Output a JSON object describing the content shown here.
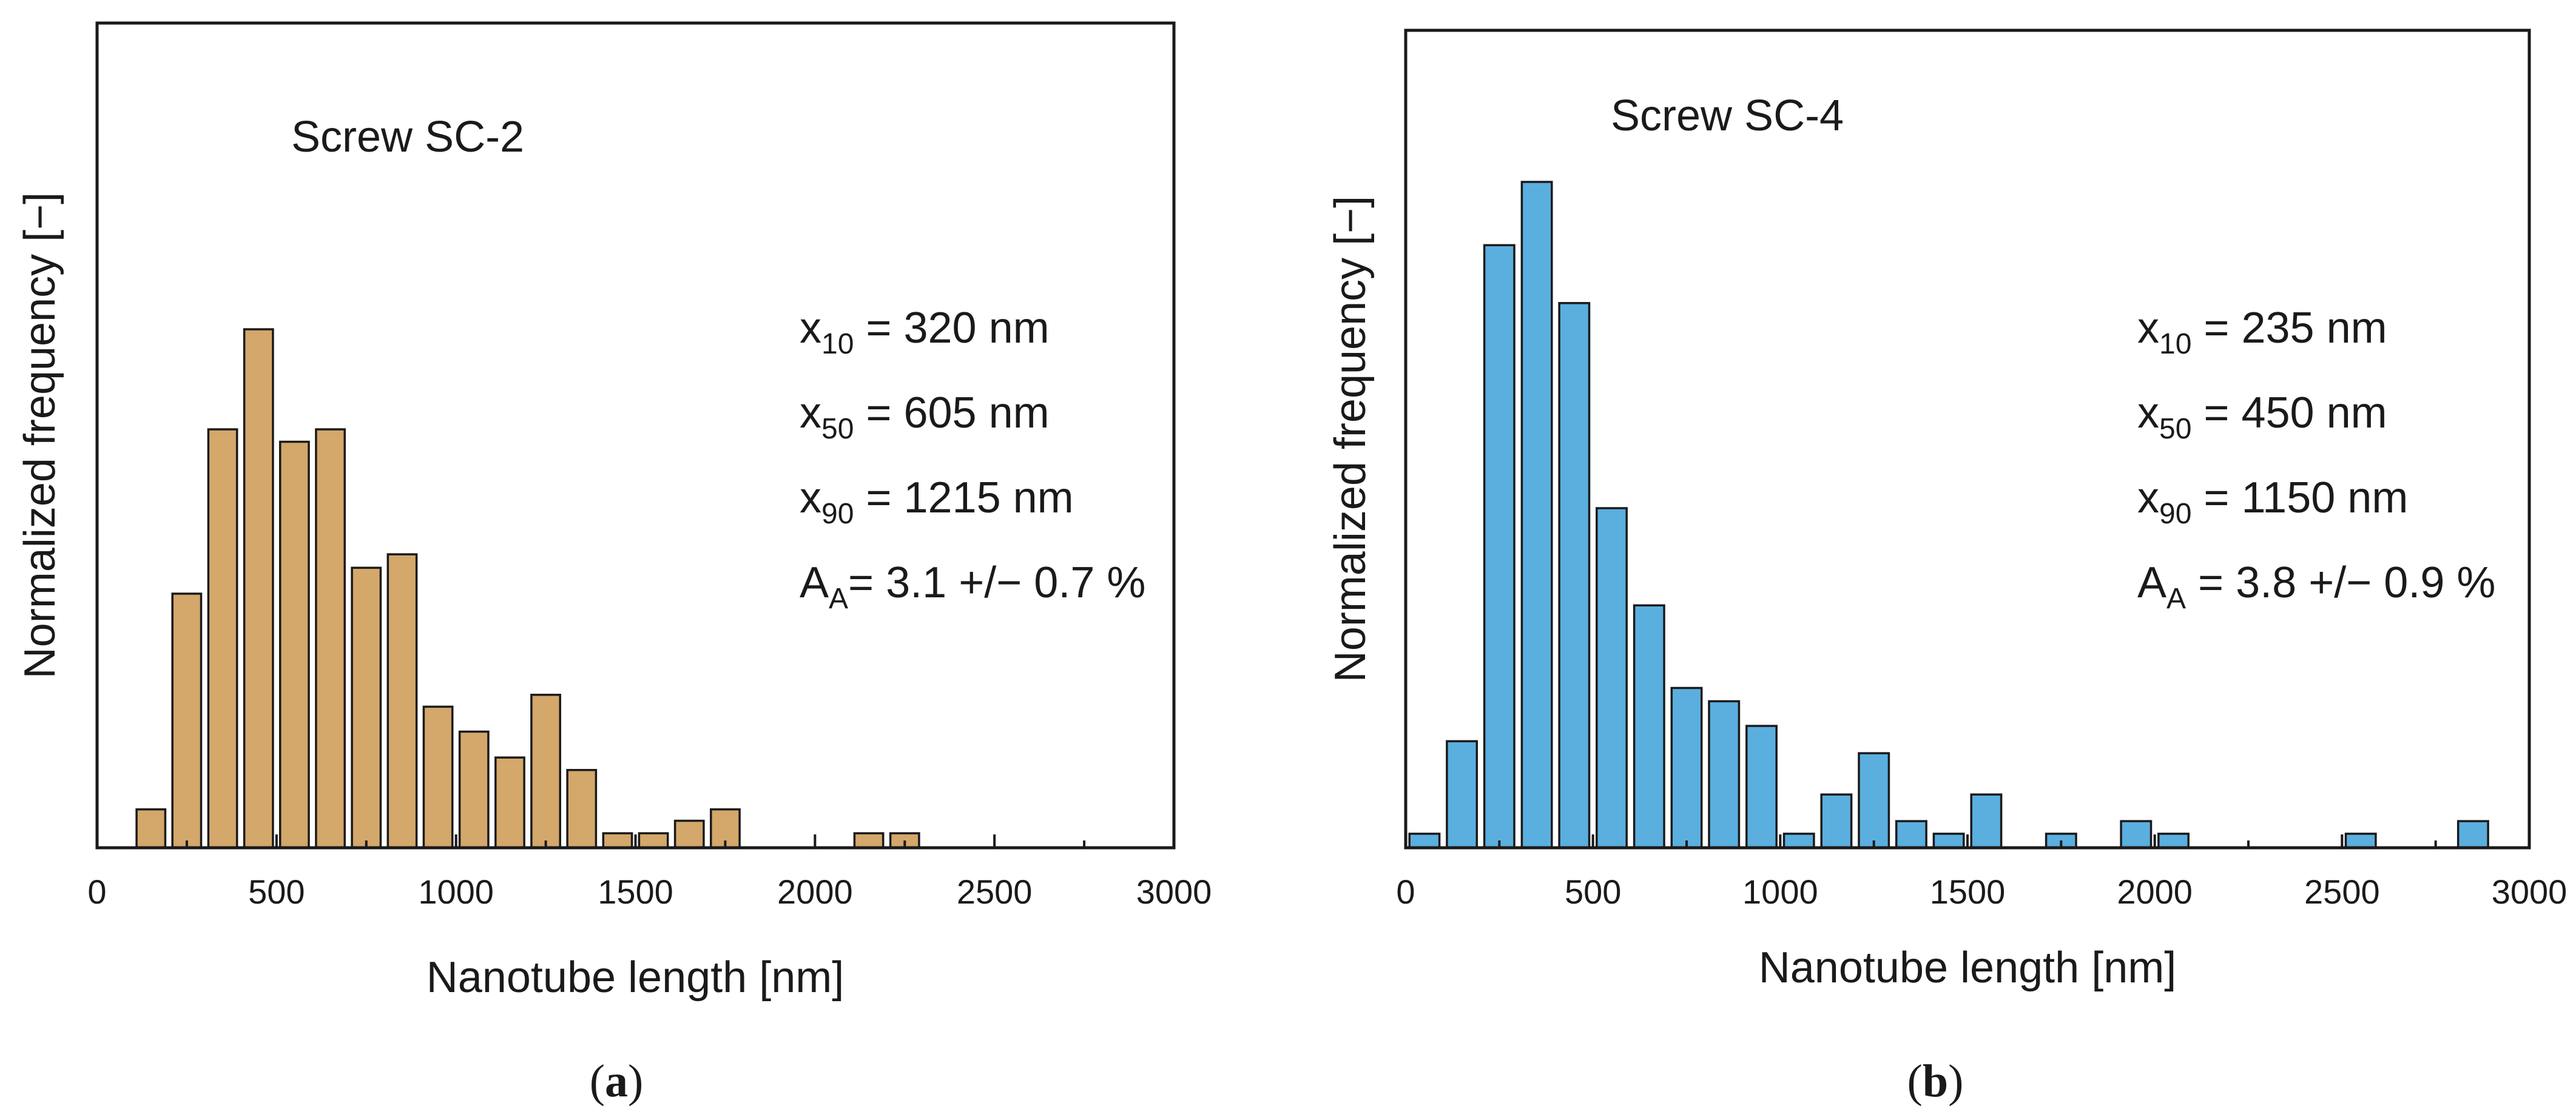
{
  "chart_data": [
    {
      "type": "bar",
      "panel": "a",
      "caption_letter": "a",
      "title": "Screw SC-2",
      "xlabel": "Nanotube length [nm]",
      "ylabel": "Normalized frequency [−]",
      "xlim": [
        0,
        3000
      ],
      "ylim": [
        0,
        1
      ],
      "xticks": [
        "0",
        "500",
        "1000",
        "1500",
        "2000",
        "2500",
        "3000"
      ],
      "bar_color": "#d4a76a",
      "bin_width": 100,
      "x": [
        150,
        250,
        350,
        450,
        550,
        650,
        750,
        850,
        950,
        1050,
        1150,
        1250,
        1350,
        1450,
        1550,
        1650,
        1750,
        2150,
        2250
      ],
      "values": [
        0.074,
        0.49,
        0.807,
        1.0,
        0.783,
        0.807,
        0.54,
        0.566,
        0.272,
        0.224,
        0.174,
        0.295,
        0.15,
        0.028,
        0.028,
        0.052,
        0.074,
        0.028,
        0.028
      ],
      "stats": [
        {
          "sym": "x",
          "sub": "10",
          "text": " = 320 nm"
        },
        {
          "sym": "x",
          "sub": "50",
          "text": " = 605 nm"
        },
        {
          "sym": "x",
          "sub": "90",
          "text": " = 1215 nm"
        },
        {
          "sym": "A",
          "sub": "A",
          "text": "= 3.1 +/− 0.7 %"
        }
      ]
    },
    {
      "type": "bar",
      "panel": "b",
      "caption_letter": "b",
      "title": "Screw SC-4",
      "xlabel": "Nanotube length [nm]",
      "ylabel": "Normalized frequency [−]",
      "xlim": [
        0,
        3000
      ],
      "ylim": [
        0,
        1
      ],
      "xticks": [
        "0",
        "500",
        "1000",
        "1500",
        "2000",
        "2500",
        "3000"
      ],
      "bar_color": "#5aafdf",
      "bin_width": 100,
      "x": [
        50,
        150,
        250,
        350,
        450,
        550,
        650,
        750,
        850,
        950,
        1050,
        1150,
        1250,
        1350,
        1450,
        1550,
        1750,
        1950,
        2050,
        2550,
        2850
      ],
      "values": [
        0.021,
        0.16,
        0.905,
        1.0,
        0.818,
        0.51,
        0.364,
        0.24,
        0.22,
        0.183,
        0.021,
        0.08,
        0.142,
        0.04,
        0.021,
        0.08,
        0.021,
        0.04,
        0.021,
        0.021,
        0.04
      ],
      "stats": [
        {
          "sym": "x",
          "sub": "10",
          "text": " = 235 nm"
        },
        {
          "sym": "x",
          "sub": "50",
          "text": " = 450 nm"
        },
        {
          "sym": "x",
          "sub": "90",
          "text": " = 1150 nm"
        },
        {
          "sym": "A",
          "sub": "A",
          "text": " = 3.8 +/− 0.9 %"
        }
      ]
    }
  ]
}
